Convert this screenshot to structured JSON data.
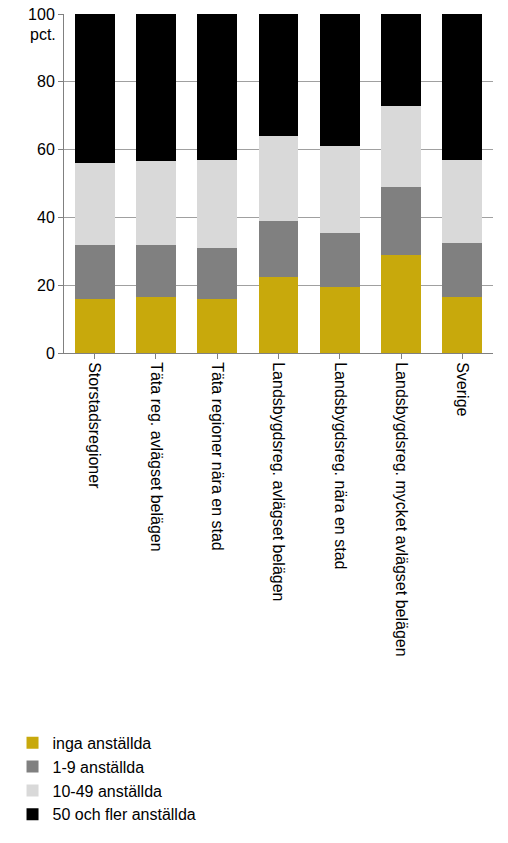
{
  "chart_data": {
    "type": "bar",
    "stacked": true,
    "ylabel": "pct.",
    "categories": [
      "Storstadsregioner",
      "Täta reg. avlägset belägen",
      "Täta regioner nära en stad",
      "Landsbygdsreg. avlägset belägen",
      "Landsbygdsreg. nära en stad",
      "Landsbygdsreg. mycket avlägset belägen",
      "Sverige"
    ],
    "series": [
      {
        "name": "inga anställda",
        "color": "#c8a90c",
        "values": [
          16,
          16.5,
          16,
          22.5,
          19.5,
          29,
          16.5
        ]
      },
      {
        "name": "1-9 anställda",
        "color": "#808080",
        "values": [
          16,
          15.5,
          15,
          16.5,
          16,
          20,
          16
        ]
      },
      {
        "name": "10-49 anställda",
        "color": "#d9d9d9",
        "values": [
          24,
          24.5,
          26,
          25,
          25.5,
          24,
          24.5
        ]
      },
      {
        "name": "50 och fler anställda",
        "color": "#000000",
        "values": [
          44,
          43.5,
          43,
          36,
          39,
          27,
          43
        ]
      }
    ],
    "ylim": [
      0,
      100
    ],
    "yticks": [
      0,
      20,
      40,
      60,
      80,
      100
    ],
    "grid": true,
    "legend": "bottom"
  }
}
